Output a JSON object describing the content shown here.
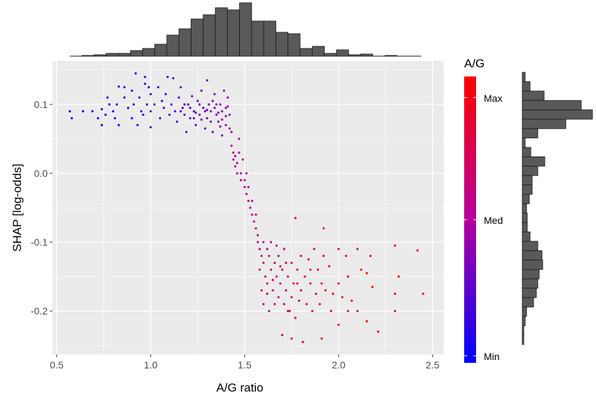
{
  "chart_data": {
    "type": "scatter",
    "xlabel": "A/G ratio",
    "ylabel": "SHAP [log-odds]",
    "xlim": [
      0.478,
      2.56
    ],
    "ylim": [
      -0.263,
      0.163
    ],
    "x_ticks": [
      "0.5",
      "1.0",
      "1.5",
      "2.0",
      "2.5"
    ],
    "x_tick_values": [
      0.5,
      1.0,
      1.5,
      2.0,
      2.5
    ],
    "y_ticks": [
      "0.1",
      "0.0",
      "-0.1",
      "-0.2"
    ],
    "y_tick_values": [
      0.1,
      0.0,
      -0.1,
      -0.2
    ],
    "grid": true,
    "panel_background": "#EBEBEB",
    "color_scale": {
      "title": "A/G",
      "labels": [
        "Max",
        "Med",
        "Min"
      ],
      "low_color": "#0000FF",
      "mid_color": "#B4009C",
      "high_color": "#FF0000",
      "placement": "right"
    },
    "points": [
      [
        0.57,
        0.09
      ],
      [
        0.58,
        0.08
      ],
      [
        0.64,
        0.09
      ],
      [
        0.69,
        0.09
      ],
      [
        0.72,
        0.08
      ],
      [
        0.74,
        0.07
      ],
      [
        0.74,
        0.093
      ],
      [
        0.76,
        0.085
      ],
      [
        0.77,
        0.11
      ],
      [
        0.78,
        0.1
      ],
      [
        0.8,
        0.09
      ],
      [
        0.81,
        0.08
      ],
      [
        0.82,
        0.1
      ],
      [
        0.83,
        0.126
      ],
      [
        0.83,
        0.07
      ],
      [
        0.86,
        0.11
      ],
      [
        0.86,
        0.125
      ],
      [
        0.88,
        0.095
      ],
      [
        0.9,
        0.12
      ],
      [
        0.9,
        0.08
      ],
      [
        0.91,
        0.1
      ],
      [
        0.92,
        0.145
      ],
      [
        0.93,
        0.07
      ],
      [
        0.94,
        0.11
      ],
      [
        0.95,
        0.09
      ],
      [
        0.96,
        0.085
      ],
      [
        0.97,
        0.14
      ],
      [
        0.97,
        0.13
      ],
      [
        0.98,
        0.1
      ],
      [
        0.99,
        0.125
      ],
      [
        1.0,
        0.09
      ],
      [
        1.0,
        0.067
      ],
      [
        1.0,
        0.115
      ],
      [
        1.02,
        0.1
      ],
      [
        1.04,
        0.125
      ],
      [
        1.05,
        0.08
      ],
      [
        1.06,
        0.105
      ],
      [
        1.07,
        0.095
      ],
      [
        1.08,
        0.115
      ],
      [
        1.09,
        0.14
      ],
      [
        1.1,
        0.085
      ],
      [
        1.11,
        0.1
      ],
      [
        1.12,
        0.138
      ],
      [
        1.13,
        0.09
      ],
      [
        1.14,
        0.075
      ],
      [
        1.15,
        0.11
      ],
      [
        1.16,
        0.125
      ],
      [
        1.17,
        0.095
      ],
      [
        1.18,
        0.085
      ],
      [
        1.19,
        0.06
      ],
      [
        1.2,
        0.1
      ],
      [
        1.21,
        0.08
      ],
      [
        1.22,
        0.112
      ],
      [
        1.23,
        0.09
      ],
      [
        1.24,
        0.07
      ],
      [
        1.25,
        0.105
      ],
      [
        1.26,
        0.085
      ],
      [
        1.27,
        0.12
      ],
      [
        1.28,
        0.095
      ],
      [
        1.29,
        0.065
      ],
      [
        1.3,
        0.135
      ],
      [
        1.3,
        0.08
      ],
      [
        1.31,
        0.1
      ],
      [
        1.32,
        0.09
      ],
      [
        1.33,
        0.06
      ],
      [
        1.34,
        0.115
      ],
      [
        1.35,
        0.085
      ],
      [
        1.36,
        0.075
      ],
      [
        1.37,
        0.1
      ],
      [
        1.38,
        0.09
      ],
      [
        1.38,
        0.055
      ],
      [
        1.39,
        0.12
      ],
      [
        1.4,
        0.095
      ],
      [
        1.4,
        0.07
      ],
      [
        1.41,
        0.11
      ],
      [
        1.42,
        0.085
      ],
      [
        1.42,
        0.065
      ],
      [
        1.18,
        0.1
      ],
      [
        1.21,
        0.095
      ],
      [
        1.24,
        0.088
      ],
      [
        1.27,
        0.078
      ],
      [
        1.29,
        0.09
      ],
      [
        1.32,
        0.075
      ],
      [
        1.34,
        0.095
      ],
      [
        1.36,
        0.088
      ],
      [
        1.38,
        0.078
      ],
      [
        1.4,
        0.083
      ],
      [
        1.41,
        0.097
      ],
      [
        1.26,
        0.1
      ],
      [
        1.23,
        0.08
      ],
      [
        1.33,
        0.105
      ],
      [
        1.37,
        0.068
      ],
      [
        1.16,
        0.09
      ],
      [
        1.3,
        0.092
      ],
      [
        1.35,
        0.1
      ],
      [
        1.43,
        0.06
      ],
      [
        1.43,
        0.04
      ],
      [
        1.44,
        0.03
      ],
      [
        1.44,
        0.02
      ],
      [
        1.45,
        0.01
      ],
      [
        1.45,
        0.025
      ],
      [
        1.46,
        0.0
      ],
      [
        1.46,
        0.015
      ],
      [
        1.47,
        0.03
      ],
      [
        1.47,
        0.05
      ],
      [
        1.48,
        0.0
      ],
      [
        1.48,
        -0.01
      ],
      [
        1.49,
        0.02
      ],
      [
        1.5,
        -0.01
      ],
      [
        1.5,
        -0.02
      ],
      [
        1.51,
        -0.03
      ],
      [
        1.51,
        0.0
      ],
      [
        1.52,
        -0.04
      ],
      [
        1.52,
        -0.02
      ],
      [
        1.53,
        -0.05
      ],
      [
        1.54,
        -0.04
      ],
      [
        1.54,
        -0.06
      ],
      [
        1.55,
        -0.07
      ],
      [
        1.56,
        -0.08
      ],
      [
        1.56,
        -0.06
      ],
      [
        1.57,
        -0.09
      ],
      [
        1.57,
        -0.1
      ],
      [
        1.58,
        -0.11
      ],
      [
        1.58,
        -0.14
      ],
      [
        1.59,
        -0.12
      ],
      [
        1.59,
        -0.17
      ],
      [
        1.6,
        -0.1
      ],
      [
        1.6,
        -0.13
      ],
      [
        1.6,
        -0.19
      ],
      [
        1.61,
        -0.15
      ],
      [
        1.62,
        -0.11
      ],
      [
        1.62,
        -0.16
      ],
      [
        1.63,
        -0.12
      ],
      [
        1.63,
        -0.2
      ],
      [
        1.64,
        -0.14
      ],
      [
        1.64,
        -0.1
      ],
      [
        1.65,
        -0.17
      ],
      [
        1.66,
        -0.13
      ],
      [
        1.66,
        -0.19
      ],
      [
        1.67,
        -0.15
      ],
      [
        1.68,
        -0.12
      ],
      [
        1.68,
        -0.18
      ],
      [
        1.69,
        -0.16
      ],
      [
        1.7,
        -0.14
      ],
      [
        1.7,
        -0.235
      ],
      [
        1.71,
        -0.11
      ],
      [
        1.71,
        -0.19
      ],
      [
        1.72,
        -0.17
      ],
      [
        1.73,
        -0.15
      ],
      [
        1.74,
        -0.2
      ],
      [
        1.75,
        -0.13
      ],
      [
        1.75,
        -0.18
      ],
      [
        1.75,
        -0.24
      ],
      [
        1.76,
        -0.16
      ],
      [
        1.77,
        -0.065
      ],
      [
        1.77,
        -0.21
      ],
      [
        1.78,
        -0.14
      ],
      [
        1.79,
        -0.185
      ],
      [
        1.8,
        -0.12
      ],
      [
        1.8,
        -0.17
      ],
      [
        1.81,
        -0.245
      ],
      [
        1.82,
        -0.15
      ],
      [
        1.83,
        -0.19
      ],
      [
        1.84,
        -0.125
      ],
      [
        1.85,
        -0.16
      ],
      [
        1.86,
        -0.2
      ],
      [
        1.87,
        -0.11
      ],
      [
        1.88,
        -0.175
      ],
      [
        1.89,
        -0.14
      ],
      [
        1.9,
        -0.19
      ],
      [
        1.91,
        -0.16
      ],
      [
        1.91,
        -0.24
      ],
      [
        1.92,
        -0.08
      ],
      [
        1.92,
        -0.12
      ],
      [
        1.93,
        -0.17
      ],
      [
        1.95,
        -0.135
      ],
      [
        1.96,
        -0.2
      ],
      [
        1.97,
        -0.175
      ],
      [
        2.0,
        -0.11
      ],
      [
        2.0,
        -0.16
      ],
      [
        2.0,
        -0.22
      ],
      [
        2.02,
        -0.18
      ],
      [
        2.04,
        -0.12
      ],
      [
        2.05,
        -0.2
      ],
      [
        2.05,
        -0.15
      ],
      [
        2.07,
        -0.185
      ],
      [
        2.1,
        -0.11
      ],
      [
        2.1,
        -0.2
      ],
      [
        2.12,
        -0.14
      ],
      [
        2.15,
        -0.215
      ],
      [
        2.15,
        -0.145
      ],
      [
        2.17,
        -0.12
      ],
      [
        2.18,
        -0.165
      ],
      [
        2.21,
        -0.23
      ],
      [
        2.3,
        -0.105
      ],
      [
        2.3,
        -0.175
      ],
      [
        2.3,
        -0.2
      ],
      [
        2.32,
        -0.15
      ],
      [
        2.42,
        -0.112
      ],
      [
        2.45,
        -0.175
      ],
      [
        1.65,
        -0.155
      ],
      [
        1.72,
        -0.13
      ],
      [
        1.78,
        -0.16
      ],
      [
        1.85,
        -0.14
      ],
      [
        1.62,
        -0.175
      ],
      [
        1.67,
        -0.105
      ],
      [
        1.73,
        -0.2
      ],
      [
        1.69,
        -0.135
      ]
    ],
    "x_marginal_histogram": {
      "range": [
        0.57,
        2.44
      ],
      "counts": [
        0,
        1,
        2,
        4,
        4,
        8,
        11,
        17,
        30,
        39,
        53,
        59,
        69,
        66,
        76,
        50,
        50,
        34,
        32,
        11,
        14,
        4,
        9,
        2,
        3,
        0,
        1,
        0,
        0
      ],
      "bar_color": "#595959"
    },
    "y_marginal_histogram": {
      "range": [
        -0.249,
        0.147
      ],
      "counts_top_to_bottom": [
        4,
        11,
        31,
        84,
        100,
        62,
        22,
        4,
        12,
        32,
        22,
        14,
        14,
        10,
        6,
        7,
        7,
        11,
        22,
        28,
        29,
        24,
        22,
        20,
        16,
        6,
        4,
        2,
        2
      ],
      "bar_color": "#595959"
    }
  }
}
